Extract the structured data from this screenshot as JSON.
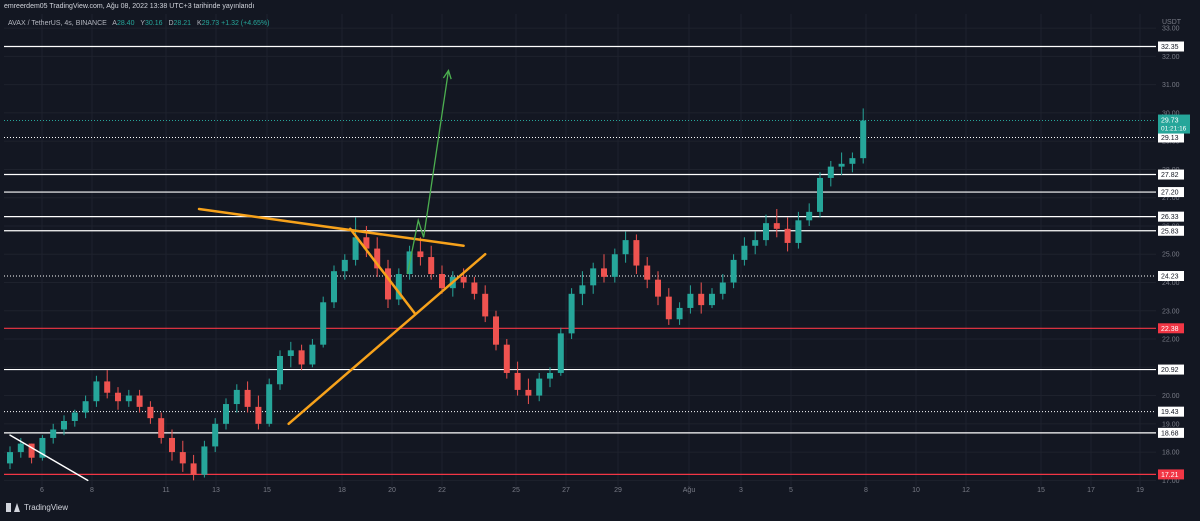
{
  "header": {
    "publisher_line": "emreerdem05 TradingView.com, Ağu 08, 2022 13:38 UTC+3 tarihinde yayınlandı"
  },
  "symbol": {
    "name": "AVAX / TetherUS, 4s, BINANCE",
    "open_label": "A",
    "open": "28.40",
    "high_label": "Y",
    "high": "30.16",
    "low_label": "D",
    "low": "28.21",
    "close_label": "K",
    "close": "29.73 +1.32 (+4.65%)"
  },
  "footer": {
    "brand": "TradingView"
  },
  "colors": {
    "background": "#131722",
    "up": "#26a69a",
    "down": "#ef5350",
    "trendline": "#f7a21b",
    "projection": "#4caf50",
    "support_red": "#f23645"
  },
  "chart_data": {
    "type": "candlestick",
    "currency_label": "USDT",
    "ylim": [
      16.8,
      33.5
    ],
    "x_ticks": [
      "6",
      "8",
      "11",
      "13",
      "15",
      "18",
      "20",
      "22",
      "25",
      "27",
      "29",
      "Ağu",
      "3",
      "5",
      "8",
      "10",
      "12",
      "15",
      "17",
      "19"
    ],
    "y_ticks": [
      "17.00",
      "18.00",
      "19.00",
      "20.00",
      "21.00",
      "22.00",
      "23.00",
      "24.00",
      "25.00",
      "26.00",
      "27.00",
      "28.00",
      "29.00",
      "30.00",
      "31.00",
      "32.00",
      "33.00"
    ],
    "price_marker": {
      "value": 29.73,
      "label": "29.73",
      "countdown": "01:21:16"
    },
    "horizontal_levels": [
      {
        "value": 32.35,
        "label": "32.35",
        "color": "white"
      },
      {
        "value": 29.13,
        "label": "29.13",
        "color": "white",
        "dotted": true
      },
      {
        "value": 27.82,
        "label": "27.82",
        "color": "white"
      },
      {
        "value": 27.2,
        "label": "27.20",
        "color": "white"
      },
      {
        "value": 26.33,
        "label": "26.33",
        "color": "white"
      },
      {
        "value": 25.83,
        "label": "25.83",
        "color": "white"
      },
      {
        "value": 24.23,
        "label": "24.23",
        "color": "white",
        "dotted": true
      },
      {
        "value": 22.38,
        "label": "22.38",
        "color": "red"
      },
      {
        "value": 20.92,
        "label": "20.92",
        "color": "white"
      },
      {
        "value": 19.43,
        "label": "19.43",
        "color": "white",
        "dotted": true
      },
      {
        "value": 18.68,
        "label": "18.68",
        "color": "white"
      },
      {
        "value": 17.21,
        "label": "17.21",
        "color": "red"
      }
    ],
    "candles": [
      [
        17.6,
        18.2,
        17.4,
        18.0
      ],
      [
        18.0,
        18.5,
        17.8,
        18.3
      ],
      [
        18.3,
        18.3,
        17.6,
        17.8
      ],
      [
        17.8,
        18.6,
        17.7,
        18.5
      ],
      [
        18.5,
        19.0,
        18.3,
        18.8
      ],
      [
        18.8,
        19.3,
        18.6,
        19.1
      ],
      [
        19.1,
        19.5,
        18.9,
        19.4
      ],
      [
        19.4,
        20.0,
        19.2,
        19.8
      ],
      [
        19.8,
        20.7,
        19.6,
        20.5
      ],
      [
        20.5,
        20.9,
        19.9,
        20.1
      ],
      [
        20.1,
        20.3,
        19.5,
        19.8
      ],
      [
        19.8,
        20.2,
        19.6,
        20.0
      ],
      [
        20.0,
        20.2,
        19.4,
        19.6
      ],
      [
        19.6,
        19.8,
        19.0,
        19.2
      ],
      [
        19.2,
        19.4,
        18.3,
        18.5
      ],
      [
        18.5,
        18.8,
        17.7,
        18.0
      ],
      [
        18.0,
        18.4,
        17.3,
        17.6
      ],
      [
        17.6,
        17.9,
        17.0,
        17.2
      ],
      [
        17.2,
        18.4,
        17.1,
        18.2
      ],
      [
        18.2,
        19.2,
        18.0,
        19.0
      ],
      [
        19.0,
        19.9,
        18.8,
        19.7
      ],
      [
        19.7,
        20.4,
        19.4,
        20.2
      ],
      [
        20.2,
        20.5,
        19.4,
        19.6
      ],
      [
        19.6,
        20.0,
        18.8,
        19.0
      ],
      [
        19.0,
        20.6,
        18.9,
        20.4
      ],
      [
        20.4,
        21.6,
        20.2,
        21.4
      ],
      [
        21.4,
        21.9,
        21.0,
        21.6
      ],
      [
        21.6,
        21.8,
        20.9,
        21.1
      ],
      [
        21.1,
        22.0,
        21.0,
        21.8
      ],
      [
        21.8,
        23.5,
        21.7,
        23.3
      ],
      [
        23.3,
        24.6,
        23.1,
        24.4
      ],
      [
        24.4,
        25.0,
        24.1,
        24.8
      ],
      [
        24.8,
        26.3,
        24.6,
        25.6
      ],
      [
        25.6,
        26.0,
        24.9,
        25.2
      ],
      [
        25.2,
        25.6,
        24.2,
        24.5
      ],
      [
        24.5,
        24.8,
        23.1,
        23.4
      ],
      [
        23.4,
        24.5,
        23.2,
        24.3
      ],
      [
        24.3,
        25.3,
        24.1,
        25.1
      ],
      [
        25.1,
        25.6,
        24.6,
        24.9
      ],
      [
        24.9,
        25.3,
        24.1,
        24.3
      ],
      [
        24.3,
        24.6,
        23.6,
        23.8
      ],
      [
        23.8,
        24.4,
        23.5,
        24.2
      ],
      [
        24.2,
        24.5,
        23.8,
        24.0
      ],
      [
        24.0,
        24.2,
        23.4,
        23.6
      ],
      [
        23.6,
        23.9,
        22.6,
        22.8
      ],
      [
        22.8,
        23.0,
        21.6,
        21.8
      ],
      [
        21.8,
        22.0,
        20.6,
        20.8
      ],
      [
        20.8,
        21.2,
        20.0,
        20.2
      ],
      [
        20.2,
        20.6,
        19.7,
        20.0
      ],
      [
        20.0,
        20.8,
        19.8,
        20.6
      ],
      [
        20.6,
        21.0,
        20.3,
        20.8
      ],
      [
        20.8,
        22.4,
        20.7,
        22.2
      ],
      [
        22.2,
        23.8,
        22.0,
        23.6
      ],
      [
        23.6,
        24.4,
        23.2,
        23.9
      ],
      [
        23.9,
        24.7,
        23.6,
        24.5
      ],
      [
        24.5,
        25.0,
        24.0,
        24.2
      ],
      [
        24.2,
        25.2,
        24.0,
        25.0
      ],
      [
        25.0,
        25.8,
        24.7,
        25.5
      ],
      [
        25.5,
        25.7,
        24.3,
        24.6
      ],
      [
        24.6,
        24.9,
        23.8,
        24.1
      ],
      [
        24.1,
        24.4,
        23.2,
        23.5
      ],
      [
        23.5,
        23.8,
        22.5,
        22.7
      ],
      [
        22.7,
        23.3,
        22.5,
        23.1
      ],
      [
        23.1,
        23.9,
        22.9,
        23.6
      ],
      [
        23.6,
        24.0,
        22.9,
        23.2
      ],
      [
        23.2,
        23.8,
        23.1,
        23.6
      ],
      [
        23.6,
        24.3,
        23.4,
        24.0
      ],
      [
        24.0,
        25.0,
        23.8,
        24.8
      ],
      [
        24.8,
        25.6,
        24.6,
        25.3
      ],
      [
        25.3,
        25.8,
        25.0,
        25.5
      ],
      [
        25.5,
        26.4,
        25.3,
        26.1
      ],
      [
        26.1,
        26.6,
        25.6,
        25.9
      ],
      [
        25.9,
        26.3,
        25.1,
        25.4
      ],
      [
        25.4,
        26.5,
        25.2,
        26.2
      ],
      [
        26.2,
        26.8,
        26.0,
        26.5
      ],
      [
        26.5,
        27.9,
        26.3,
        27.7
      ],
      [
        27.7,
        28.3,
        27.4,
        28.1
      ],
      [
        28.1,
        28.6,
        27.8,
        28.2
      ],
      [
        28.2,
        28.6,
        27.9,
        28.4
      ],
      [
        28.4,
        30.16,
        28.21,
        29.73
      ]
    ],
    "trendlines": [
      {
        "name": "descending-resistance",
        "color": "orange",
        "points": [
          [
            17.5,
            26.6
          ],
          [
            42.0,
            25.3
          ]
        ]
      },
      {
        "name": "ascending-support",
        "color": "orange",
        "points": [
          [
            25.8,
            19.0
          ],
          [
            44.0,
            25.0
          ]
        ]
      },
      {
        "name": "pennant-upper",
        "color": "orange",
        "points": [
          [
            31.5,
            25.9
          ],
          [
            37.5,
            22.9
          ]
        ]
      },
      {
        "name": "old-downtrend",
        "color": "white",
        "points": [
          [
            0,
            18.6
          ],
          [
            7.2,
            17.0
          ]
        ]
      }
    ],
    "projection_arrow": {
      "color": "green",
      "points": [
        [
          36.8,
          24.3
        ],
        [
          37.8,
          26.2
        ],
        [
          38.3,
          25.6
        ],
        [
          40.6,
          31.5
        ]
      ]
    }
  }
}
